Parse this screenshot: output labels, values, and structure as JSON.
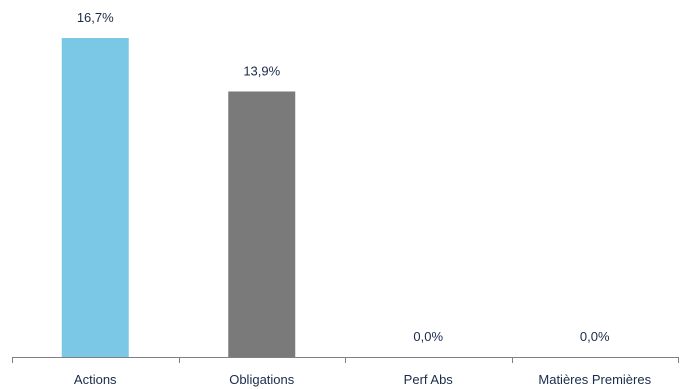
{
  "chart_data": {
    "type": "bar",
    "categories": [
      "Actions",
      "Obligations",
      "Perf Abs",
      "Matières Premières"
    ],
    "values": [
      16.7,
      13.9,
      0.0,
      0.0
    ],
    "value_labels": [
      "16,7%",
      "13,9%",
      "0,0%",
      "0,0%"
    ],
    "colors": [
      "#7ac8e6",
      "#7a7a7a",
      "#7a7a7a",
      "#7a7a7a"
    ],
    "ylim": [
      0,
      16.7
    ],
    "title": "",
    "xlabel": "",
    "ylabel": "",
    "grid": false,
    "legend": "none"
  }
}
